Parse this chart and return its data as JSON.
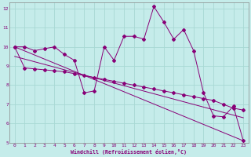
{
  "xlabel": "Windchill (Refroidissement éolien,°C)",
  "background_color": "#c5ecea",
  "grid_color": "#a8d8d4",
  "line_color": "#880077",
  "xlim": [
    -0.5,
    23.5
  ],
  "ylim": [
    5,
    12.3
  ],
  "yticks": [
    5,
    6,
    7,
    8,
    9,
    10,
    11,
    12
  ],
  "xticks": [
    0,
    1,
    2,
    3,
    4,
    5,
    6,
    7,
    8,
    9,
    10,
    11,
    12,
    13,
    14,
    15,
    16,
    17,
    18,
    19,
    20,
    21,
    22,
    23
  ],
  "line1_x": [
    0,
    1,
    2,
    3,
    4,
    5,
    6,
    7,
    8,
    9,
    10,
    11,
    12,
    13,
    14,
    15,
    16,
    17,
    18,
    19,
    20,
    21,
    22,
    23
  ],
  "line1_y": [
    10.0,
    10.0,
    9.8,
    9.9,
    10.0,
    9.6,
    9.3,
    7.6,
    7.7,
    10.0,
    9.3,
    10.55,
    10.55,
    10.4,
    12.1,
    11.3,
    10.4,
    10.9,
    9.8,
    7.6,
    6.4,
    6.35,
    6.9,
    5.1
  ],
  "line2_x": [
    0,
    1,
    2,
    3,
    4,
    5,
    6,
    7,
    8,
    9,
    10,
    11,
    12,
    13,
    14,
    15,
    16,
    17,
    18,
    19,
    20,
    21,
    22,
    23
  ],
  "line2_y": [
    10.0,
    8.9,
    8.85,
    8.8,
    8.75,
    8.7,
    8.6,
    8.5,
    8.4,
    8.3,
    8.2,
    8.1,
    8.0,
    7.9,
    7.8,
    7.7,
    7.6,
    7.5,
    7.4,
    7.3,
    7.2,
    7.0,
    6.8,
    6.7
  ],
  "line3_x": [
    0,
    23
  ],
  "line3_y": [
    10.0,
    5.1
  ],
  "line4_x": [
    0,
    23
  ],
  "line4_y": [
    9.5,
    6.3
  ]
}
